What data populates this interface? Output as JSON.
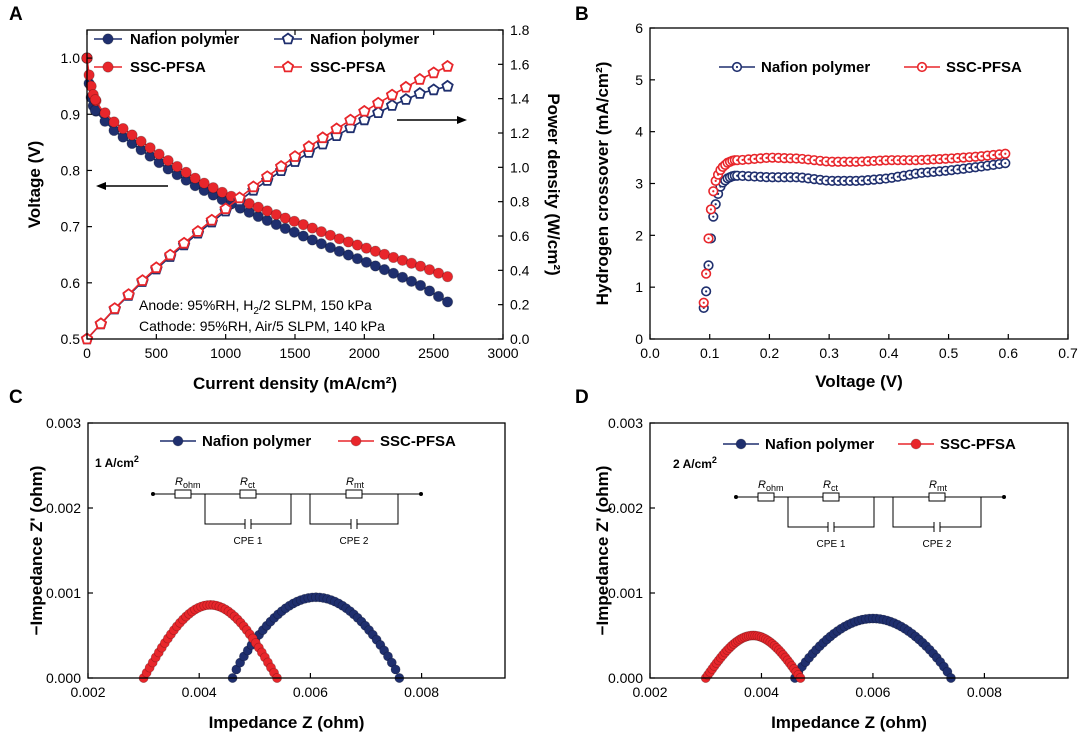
{
  "chart_data": [
    {
      "panel": "A",
      "type": "line",
      "xlabel": "Current density (mA/cm²)",
      "ylabel_left": "Voltage (V)",
      "ylabel_right": "Power density (W/cm²)",
      "xlim": [
        0,
        3000
      ],
      "ylim_left": [
        0.5,
        1.05
      ],
      "ylim_right": [
        0,
        1.8
      ],
      "xticks": [
        "0",
        "500",
        "1000",
        "1500",
        "2000",
        "2500",
        "3000"
      ],
      "yticks_left": [
        "0.5",
        "0.6",
        "0.7",
        "0.8",
        "0.9",
        "1.0"
      ],
      "yticks_right": [
        "0.0",
        "0.2",
        "0.4",
        "0.6",
        "0.8",
        "1.0",
        "1.2",
        "1.4",
        "1.6",
        "1.8"
      ],
      "legend": [
        {
          "name": "Nafion polymer",
          "marker": "circle",
          "color": "#1f2f6e"
        },
        {
          "name": "SSC-PFSA",
          "marker": "circle",
          "color": "#e8262b"
        },
        {
          "name": "Nafion polymer",
          "marker": "pentagon",
          "color": "#1f2f6e"
        },
        {
          "name": "SSC-PFSA",
          "marker": "pentagon",
          "color": "#e8262b"
        }
      ],
      "series": [
        {
          "name": "Nafion polymer (voltage)",
          "axis": "left",
          "color": "#1f2f6e",
          "x": [
            0,
            20,
            50,
            100,
            200,
            400,
            600,
            800,
            1000,
            1200,
            1400,
            1600,
            1800,
            2000,
            2200,
            2400,
            2600
          ],
          "y": [
            1.0,
            0.94,
            0.91,
            0.895,
            0.87,
            0.835,
            0.8,
            0.77,
            0.745,
            0.722,
            0.7,
            0.679,
            0.658,
            0.638,
            0.618,
            0.596,
            0.566
          ]
        },
        {
          "name": "SSC-PFSA (voltage)",
          "axis": "left",
          "color": "#e8262b",
          "x": [
            0,
            20,
            50,
            100,
            200,
            400,
            600,
            800,
            1000,
            1200,
            1400,
            1600,
            1800,
            2000,
            2200,
            2400,
            2600
          ],
          "y": [
            1.0,
            0.96,
            0.93,
            0.91,
            0.885,
            0.85,
            0.815,
            0.783,
            0.758,
            0.738,
            0.718,
            0.7,
            0.68,
            0.663,
            0.646,
            0.63,
            0.611
          ]
        },
        {
          "name": "Nafion polymer (power)",
          "axis": "right",
          "color": "#1f2f6e",
          "x": [
            0,
            200,
            400,
            600,
            800,
            1000,
            1200,
            1400,
            1600,
            1800,
            2000,
            2200,
            2400,
            2600
          ],
          "y": [
            0.0,
            0.174,
            0.334,
            0.48,
            0.616,
            0.745,
            0.866,
            0.98,
            1.086,
            1.184,
            1.276,
            1.36,
            1.43,
            1.472
          ]
        },
        {
          "name": "SSC-PFSA (power)",
          "axis": "right",
          "color": "#e8262b",
          "x": [
            0,
            200,
            400,
            600,
            800,
            1000,
            1200,
            1400,
            1600,
            1800,
            2000,
            2200,
            2400,
            2600
          ],
          "y": [
            0.0,
            0.177,
            0.34,
            0.489,
            0.626,
            0.758,
            0.886,
            1.005,
            1.12,
            1.224,
            1.326,
            1.421,
            1.512,
            1.588
          ]
        }
      ],
      "annotations": [
        "Anode: 95%RH, H",
        "2",
        "/2 SLPM, 150 kPa",
        "Cathode: 95%RH, Air/5 SLPM, 140 kPa"
      ]
    },
    {
      "panel": "B",
      "type": "scatter",
      "xlabel": "Voltage (V)",
      "ylabel": "Hydrogen crossover (mA/cm²)",
      "xlim": [
        0.0,
        0.7
      ],
      "ylim": [
        0,
        6
      ],
      "xticks": [
        "0.0",
        "0.1",
        "0.2",
        "0.3",
        "0.4",
        "0.5",
        "0.6",
        "0.7"
      ],
      "yticks": [
        "0",
        "1",
        "2",
        "3",
        "4",
        "5",
        "6"
      ],
      "legend": [
        {
          "name": "Nafion polymer",
          "color": "#1f2f6e"
        },
        {
          "name": "SSC-PFSA",
          "color": "#e8262b"
        }
      ],
      "series": [
        {
          "name": "Nafion polymer",
          "color": "#1f2f6e",
          "x": [
            0.09,
            0.095,
            0.1,
            0.105,
            0.11,
            0.115,
            0.12,
            0.13,
            0.14,
            0.15,
            0.2,
            0.25,
            0.3,
            0.35,
            0.4,
            0.45,
            0.5,
            0.55,
            0.6
          ],
          "y": [
            0.6,
            1.0,
            1.7,
            2.3,
            2.6,
            2.85,
            3.0,
            3.1,
            3.15,
            3.15,
            3.12,
            3.12,
            3.05,
            3.05,
            3.1,
            3.2,
            3.25,
            3.32,
            3.4
          ]
        },
        {
          "name": "SSC-PFSA",
          "color": "#e8262b",
          "x": [
            0.09,
            0.095,
            0.1,
            0.105,
            0.11,
            0.115,
            0.12,
            0.13,
            0.14,
            0.15,
            0.2,
            0.25,
            0.3,
            0.35,
            0.4,
            0.45,
            0.5,
            0.55,
            0.6
          ],
          "y": [
            0.7,
            1.4,
            2.3,
            2.8,
            3.05,
            3.2,
            3.3,
            3.4,
            3.45,
            3.45,
            3.5,
            3.48,
            3.42,
            3.42,
            3.45,
            3.45,
            3.48,
            3.52,
            3.58
          ]
        }
      ]
    },
    {
      "panel": "C",
      "type": "scatter",
      "xlabel": "Impedance Z (ohm)",
      "ylabel": "−Impedance Z' (ohm)",
      "xlim": [
        0.002,
        0.0095
      ],
      "ylim": [
        0,
        0.003
      ],
      "xticks": [
        "0.002",
        "0.004",
        "0.006",
        "0.008"
      ],
      "yticks": [
        "0.000",
        "0.001",
        "0.002",
        "0.003"
      ],
      "condition": "1 A/cm",
      "condition_sup": "2",
      "legend": [
        {
          "name": "Nafion polymer",
          "color": "#1f2f6e"
        },
        {
          "name": "SSC-PFSA",
          "color": "#e8262b"
        }
      ],
      "series": [
        {
          "name": "Nafion polymer",
          "color": "#1f2f6e",
          "shape": "arc",
          "x_start": 0.0046,
          "x_end": 0.0076,
          "peak": 0.00095
        },
        {
          "name": "SSC-PFSA",
          "color": "#e8262b",
          "shape": "arc",
          "x_start": 0.003,
          "x_end": 0.0054,
          "peak": 0.00086
        }
      ],
      "circuit": {
        "elements": [
          "R",
          "ohm",
          "R",
          "ct",
          "R",
          "mt"
        ],
        "cpe": [
          "CPE 1",
          "CPE 2"
        ]
      }
    },
    {
      "panel": "D",
      "type": "scatter",
      "xlabel": "Impedance Z (ohm)",
      "ylabel": "−Impedance Z' (ohm)",
      "xlim": [
        0.002,
        0.0095
      ],
      "ylim": [
        0,
        0.003
      ],
      "xticks": [
        "0.002",
        "0.004",
        "0.006",
        "0.008"
      ],
      "yticks": [
        "0.000",
        "0.001",
        "0.002",
        "0.003"
      ],
      "condition": "2 A/cm",
      "condition_sup": "2",
      "legend": [
        {
          "name": "Nafion polymer",
          "color": "#1f2f6e"
        },
        {
          "name": "SSC-PFSA",
          "color": "#e8262b"
        }
      ],
      "series": [
        {
          "name": "Nafion polymer",
          "color": "#1f2f6e",
          "shape": "arc",
          "x_start": 0.0046,
          "x_end": 0.0074,
          "peak": 0.0007
        },
        {
          "name": "SSC-PFSA",
          "color": "#e8262b",
          "shape": "arc",
          "x_start": 0.003,
          "x_end": 0.0047,
          "peak": 0.0005
        }
      ],
      "circuit": {
        "elements": [
          "R",
          "ohm",
          "R",
          "ct",
          "R",
          "mt"
        ],
        "cpe": [
          "CPE 1",
          "CPE 2"
        ]
      }
    }
  ]
}
